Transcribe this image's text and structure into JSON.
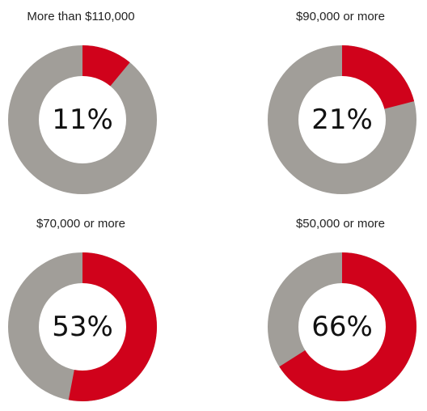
{
  "colors": {
    "highlight": "#d0021b",
    "remainder": "#a19e99",
    "hole": "#ffffff"
  },
  "chart_data": [
    {
      "type": "pie",
      "title": "More than $110,000",
      "values": [
        11,
        89
      ],
      "value_label": "11%"
    },
    {
      "type": "pie",
      "title": "$90,000 or more",
      "values": [
        21,
        79
      ],
      "value_label": "21%"
    },
    {
      "type": "pie",
      "title": "$70,000 or more",
      "values": [
        53,
        47
      ],
      "value_label": "53%"
    },
    {
      "type": "pie",
      "title": "$50,000 or more",
      "values": [
        66,
        34
      ],
      "value_label": "66%"
    }
  ]
}
